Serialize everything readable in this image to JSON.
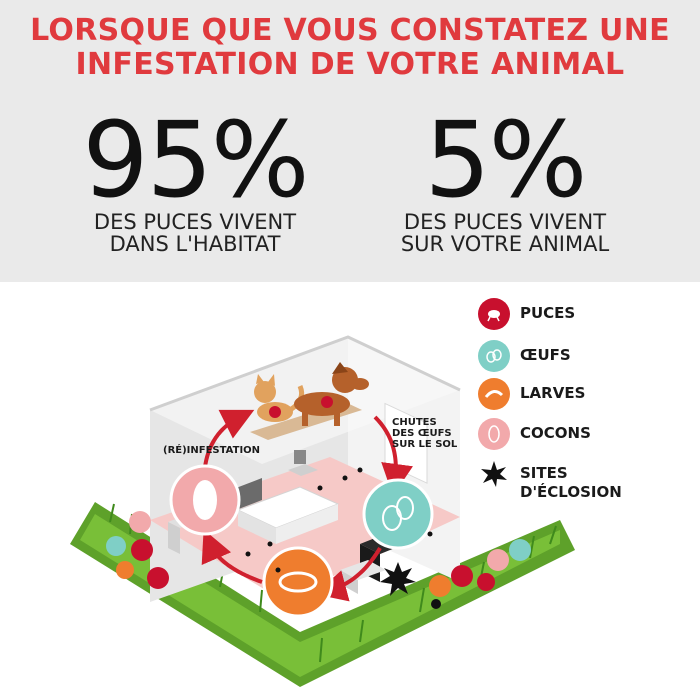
{
  "header": {
    "line1": "LORSQUE QUE VOUS CONSTATEZ UNE",
    "line2": "INFESTATION DE VOTRE ANIMAL"
  },
  "stats": [
    {
      "value": "95%",
      "line1": "DES PUCES VIVENT",
      "line2": "DANS L'HABITAT"
    },
    {
      "value": "5%",
      "line1": "DES PUCES VIVENT",
      "line2": "SUR VOTRE ANIMAL"
    }
  ],
  "legend": [
    {
      "label": "PUCES",
      "icon": "flea-icon",
      "color": "#c8102e"
    },
    {
      "label": "ŒUFS",
      "icon": "eggs-icon",
      "color": "#7fcfc6"
    },
    {
      "label": "LARVES",
      "icon": "larva-icon",
      "color": "#ef7d2e"
    },
    {
      "label": "COCONS",
      "icon": "cocoon-icon",
      "color": "#f2a9ab"
    },
    {
      "label": "SITES",
      "label2": "D'ÉCLOSION",
      "icon": "hatching-site-icon",
      "color": "#111111"
    }
  ],
  "diagram": {
    "reinfestation": "(RÉ)INFESTATION",
    "drop_line1": "CHUTES",
    "drop_line2": "DES ŒUFS",
    "drop_line3": "SUR LE SOL"
  },
  "colors": {
    "accent": "#e03a3e",
    "floor": "#f6c9c7",
    "grass": "#6cae2c"
  }
}
